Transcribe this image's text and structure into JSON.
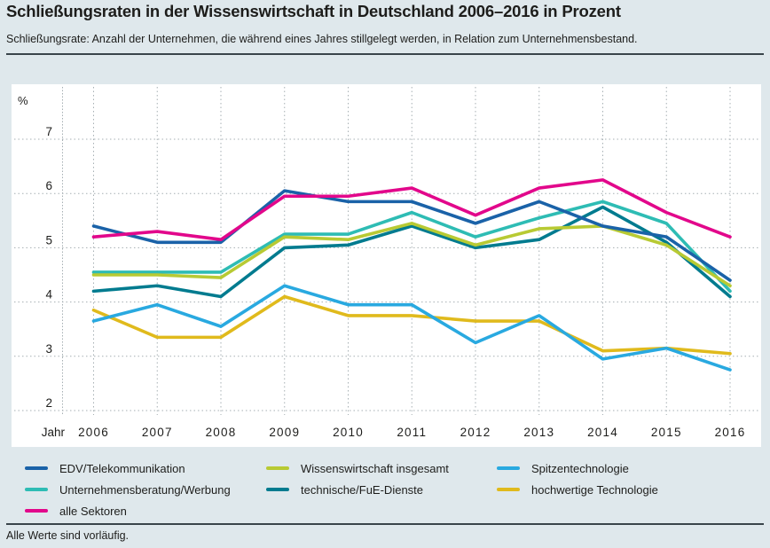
{
  "header": {
    "title": "Schließungsraten in der Wissenswirtschaft in Deutschland 2006–2016 in Prozent",
    "subtitle": "Schließungsrate: Anzahl der Unternehmen, die während eines Jahres stillgelegt werden, in Relation zum Unternehmensbestand."
  },
  "footer": {
    "note": "Alle Werte sind vorläufig."
  },
  "chart_data": {
    "type": "line",
    "title": "Schließungsraten in der Wissenswirtschaft in Deutschland 2006–2016 in Prozent",
    "unit_label": "%",
    "x_axis_label": "Jahr",
    "x": [
      2006,
      2007,
      2008,
      2009,
      2010,
      2011,
      2012,
      2013,
      2014,
      2015,
      2016
    ],
    "y_ticks": [
      7,
      6,
      5,
      4,
      3,
      2
    ],
    "ylim": [
      2,
      7.6
    ],
    "grid": "dotted",
    "legend_position": "bottom",
    "series": [
      {
        "name": "hochwertige Technologie",
        "color": "#e0ba1c",
        "values": [
          3.85,
          3.35,
          3.35,
          4.1,
          3.75,
          3.75,
          3.65,
          3.65,
          3.1,
          3.15,
          3.05
        ]
      },
      {
        "name": "Spitzentechnologie",
        "color": "#29a9e0",
        "values": [
          3.65,
          3.95,
          3.55,
          4.3,
          3.95,
          3.95,
          3.25,
          3.75,
          2.95,
          3.15,
          2.75
        ]
      },
      {
        "name": "technische/FuE-Dienste",
        "color": "#007b8f",
        "values": [
          4.2,
          4.3,
          4.1,
          5.0,
          5.05,
          5.4,
          5.0,
          5.15,
          5.75,
          5.1,
          4.1
        ]
      },
      {
        "name": "Unternehmensberatung/Werbung",
        "color": "#2ebcb4",
        "values": [
          4.55,
          4.55,
          4.55,
          5.25,
          5.25,
          5.65,
          5.2,
          5.55,
          5.85,
          5.45,
          4.2
        ]
      },
      {
        "name": "Wissenswirtschaft insgesamt",
        "color": "#b8ca33",
        "values": [
          4.5,
          4.5,
          4.45,
          5.2,
          5.15,
          5.45,
          5.05,
          5.35,
          5.4,
          5.05,
          4.3
        ]
      },
      {
        "name": "EDV/Telekommunikation",
        "color": "#1a62a8",
        "values": [
          5.4,
          5.1,
          5.1,
          6.05,
          5.85,
          5.85,
          5.45,
          5.85,
          5.4,
          5.2,
          4.4
        ]
      },
      {
        "name": "alle Sektoren",
        "color": "#e2078b",
        "values": [
          5.2,
          5.3,
          5.15,
          5.95,
          5.95,
          6.1,
          5.6,
          6.1,
          6.25,
          5.65,
          5.2
        ]
      }
    ],
    "legend_order": [
      "EDV/Telekommunikation",
      "Wissenswirtschaft insgesamt",
      "Spitzentechnologie",
      "Unternehmensberatung/Werbung",
      "technische/FuE-Dienste",
      "hochwertige Technologie",
      "alle Sektoren"
    ]
  }
}
